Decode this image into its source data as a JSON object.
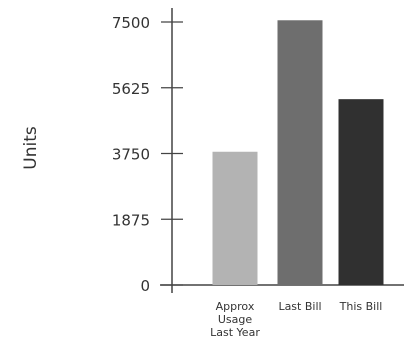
{
  "chart_data": {
    "type": "bar",
    "ylabel": "Units",
    "categories": [
      [
        "Approx",
        "Usage",
        "Last Year"
      ],
      [
        "Last Bill"
      ],
      [
        "This Bill"
      ]
    ],
    "values": [
      3800,
      7550,
      5300
    ],
    "yticks": [
      0,
      1875,
      3750,
      5625,
      7500
    ],
    "ylim": [
      0,
      7900
    ],
    "grid": false,
    "colors": [
      "#b3b3b3",
      "#6e6e6e",
      "#303030"
    ]
  }
}
